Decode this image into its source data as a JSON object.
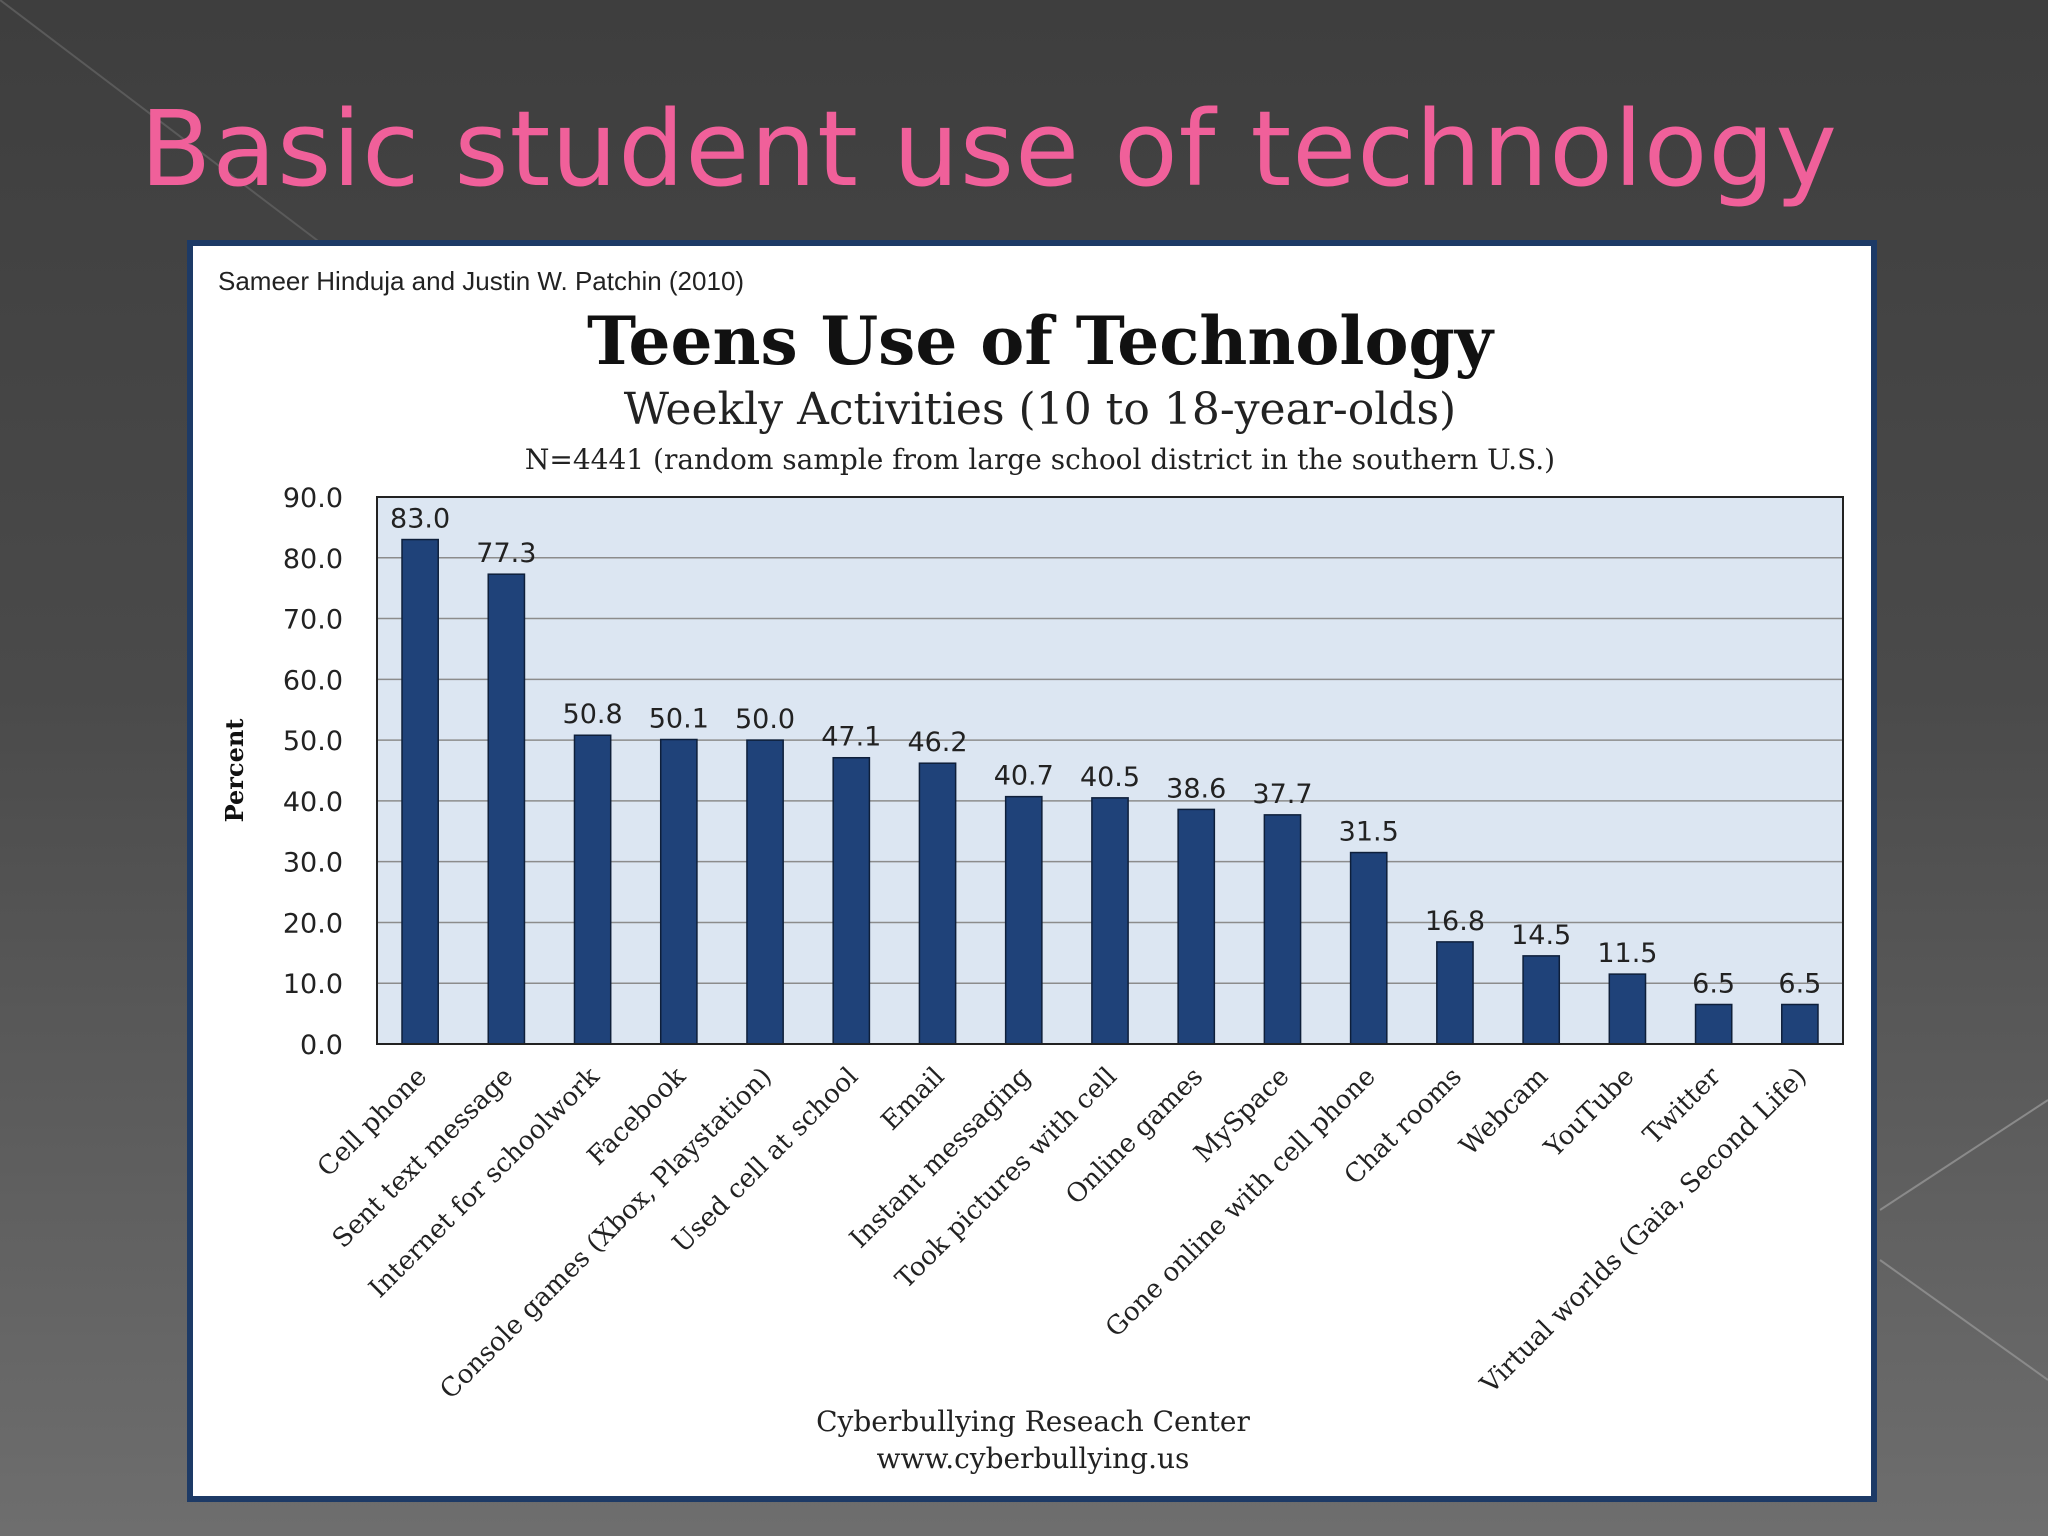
{
  "slide": {
    "title": "Basic student use of technology"
  },
  "chart_meta": {
    "source": "Sameer Hinduja and Justin W. Patchin (2010)",
    "footer_line1": "Cyberbullying Reseach Center",
    "footer_line2": "www.cyberbullying.us"
  },
  "colors": {
    "accent_title": "#f0609a",
    "bar": "#1f4279",
    "plot_bg": "#dce6f2",
    "frame": "#1d3a66"
  },
  "chart_data": {
    "type": "bar",
    "title": "Teens Use of Technology",
    "subtitle": "Weekly Activities (10 to 18-year-olds)",
    "subtitle2": "N=4441 (random sample from large school district in the southern U.S.)",
    "xlabel": "",
    "ylabel": "Percent",
    "ylim": [
      0,
      90
    ],
    "ytick_step": 10,
    "yticks": [
      "0.0",
      "10.0",
      "20.0",
      "30.0",
      "40.0",
      "50.0",
      "60.0",
      "70.0",
      "80.0",
      "90.0"
    ],
    "grid": true,
    "legend": "none",
    "categories": [
      "Cell phone",
      "Sent text message",
      "Internet for schoolwork",
      "Facebook",
      "Console games (Xbox, Playstation)",
      "Used cell at school",
      "Email",
      "Instant messaging",
      "Took pictures with cell",
      "Online games",
      "MySpace",
      "Gone online with cell phone",
      "Chat rooms",
      "Webcam",
      "YouTube",
      "Twitter",
      "Virtual worlds (Gaia, Second Life)"
    ],
    "values": [
      83.0,
      77.3,
      50.8,
      50.1,
      50.0,
      47.1,
      46.2,
      40.7,
      40.5,
      38.6,
      37.7,
      31.5,
      16.8,
      14.5,
      11.5,
      6.5,
      6.5
    ],
    "value_labels": [
      "83.0",
      "77.3",
      "50.8",
      "50.1",
      "50.0",
      "47.1",
      "46.2",
      "40.7",
      "40.5",
      "38.6",
      "37.7",
      "31.5",
      "16.8",
      "14.5",
      "11.5",
      "6.5",
      "6.5"
    ]
  }
}
